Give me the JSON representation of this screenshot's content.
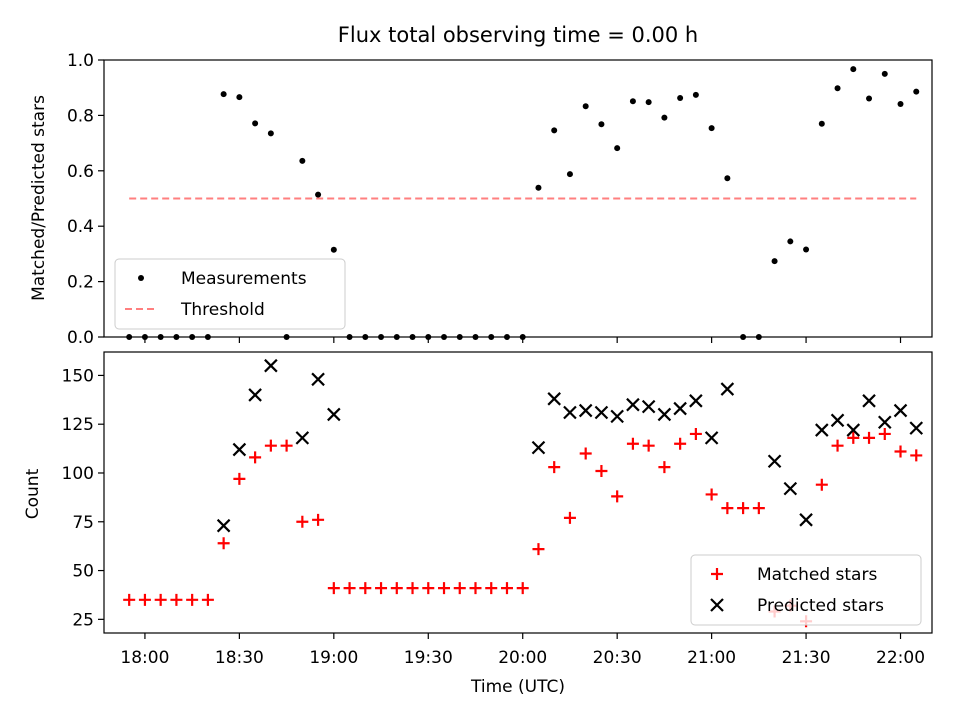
{
  "chart_data": [
    {
      "type": "scatter",
      "title": "Flux total observing time = 0.00 h",
      "ylabel": "Matched/Predicted stars",
      "xlabel": "",
      "xlim": [
        "17:47",
        "22:10"
      ],
      "ylim": [
        0,
        1.0
      ],
      "yticks": [
        "0.0",
        "0.2",
        "0.4",
        "0.6",
        "0.8",
        "1.0"
      ],
      "grid": false,
      "legend_position": "lower-left",
      "series": [
        {
          "name": "Measurements",
          "marker": "dot",
          "color": "#000000",
          "points": [
            [
              "17:55",
              0
            ],
            [
              "18:00",
              0
            ],
            [
              "18:05",
              0
            ],
            [
              "18:10",
              0
            ],
            [
              "18:15",
              0
            ],
            [
              "18:20",
              0
            ],
            [
              "18:25",
              0.877
            ],
            [
              "18:30",
              0.866
            ],
            [
              "18:35",
              0.771
            ],
            [
              "18:40",
              0.735
            ],
            [
              "18:45",
              0
            ],
            [
              "18:50",
              0.636
            ],
            [
              "18:55",
              0.514
            ],
            [
              "19:00",
              0.315
            ],
            [
              "19:05",
              0
            ],
            [
              "19:10",
              0
            ],
            [
              "19:15",
              0
            ],
            [
              "19:20",
              0
            ],
            [
              "19:25",
              0
            ],
            [
              "19:30",
              0
            ],
            [
              "19:35",
              0
            ],
            [
              "19:40",
              0
            ],
            [
              "19:45",
              0
            ],
            [
              "19:50",
              0
            ],
            [
              "19:55",
              0
            ],
            [
              "20:00",
              0
            ],
            [
              "20:05",
              0.539
            ],
            [
              "20:10",
              0.746
            ],
            [
              "20:15",
              0.588
            ],
            [
              "20:20",
              0.833
            ],
            [
              "20:25",
              0.768
            ],
            [
              "20:30",
              0.682
            ],
            [
              "20:35",
              0.851
            ],
            [
              "20:40",
              0.848
            ],
            [
              "20:45",
              0.792
            ],
            [
              "20:50",
              0.863
            ],
            [
              "20:55",
              0.874
            ],
            [
              "21:00",
              0.754
            ],
            [
              "21:05",
              0.573
            ],
            [
              "21:10",
              0
            ],
            [
              "21:15",
              0
            ],
            [
              "21:20",
              0.274
            ],
            [
              "21:25",
              0.345
            ],
            [
              "21:30",
              0.316
            ],
            [
              "21:35",
              0.77
            ],
            [
              "21:40",
              0.898
            ],
            [
              "21:45",
              0.967
            ],
            [
              "21:50",
              0.861
            ],
            [
              "21:55",
              0.95
            ],
            [
              "22:00",
              0.841
            ],
            [
              "22:05",
              0.886
            ]
          ]
        },
        {
          "name": "Threshold",
          "marker": "dashed-line",
          "color": "#ff7f7f",
          "points": [
            [
              "17:55",
              0.5
            ],
            [
              "22:05",
              0.5
            ]
          ]
        }
      ]
    },
    {
      "type": "scatter",
      "title": "",
      "ylabel": "Count",
      "xlabel": "Time (UTC)",
      "xlim": [
        "17:47",
        "22:10"
      ],
      "ylim": [
        18,
        162
      ],
      "yticks": [
        "25",
        "50",
        "75",
        "100",
        "125",
        "150"
      ],
      "xticks": [
        "18:00",
        "18:30",
        "19:00",
        "19:30",
        "20:00",
        "20:30",
        "21:00",
        "21:30",
        "22:00"
      ],
      "grid": false,
      "legend_position": "lower-right",
      "series": [
        {
          "name": "Matched stars",
          "marker": "plus",
          "color": "#ff0000",
          "points": [
            [
              "17:55",
              35
            ],
            [
              "18:00",
              35
            ],
            [
              "18:05",
              35
            ],
            [
              "18:10",
              35
            ],
            [
              "18:15",
              35
            ],
            [
              "18:20",
              35
            ],
            [
              "18:25",
              64
            ],
            [
              "18:30",
              97
            ],
            [
              "18:35",
              108
            ],
            [
              "18:40",
              114
            ],
            [
              "18:45",
              114
            ],
            [
              "18:50",
              75
            ],
            [
              "18:55",
              76
            ],
            [
              "19:00",
              41
            ],
            [
              "19:05",
              41
            ],
            [
              "19:10",
              41
            ],
            [
              "19:15",
              41
            ],
            [
              "19:20",
              41
            ],
            [
              "19:25",
              41
            ],
            [
              "19:30",
              41
            ],
            [
              "19:35",
              41
            ],
            [
              "19:40",
              41
            ],
            [
              "19:45",
              41
            ],
            [
              "19:50",
              41
            ],
            [
              "19:55",
              41
            ],
            [
              "20:00",
              41
            ],
            [
              "20:05",
              61
            ],
            [
              "20:10",
              103
            ],
            [
              "20:15",
              77
            ],
            [
              "20:20",
              110
            ],
            [
              "20:25",
              101
            ],
            [
              "20:30",
              88
            ],
            [
              "20:35",
              115
            ],
            [
              "20:40",
              114
            ],
            [
              "20:45",
              103
            ],
            [
              "20:50",
              115
            ],
            [
              "20:55",
              120
            ],
            [
              "21:00",
              89
            ],
            [
              "21:05",
              82
            ],
            [
              "21:10",
              82
            ],
            [
              "21:15",
              82
            ],
            [
              "21:20",
              29
            ],
            [
              "21:25",
              32
            ],
            [
              "21:30",
              24
            ],
            [
              "21:35",
              94
            ],
            [
              "21:40",
              114
            ],
            [
              "21:45",
              118
            ],
            [
              "21:50",
              118
            ],
            [
              "21:55",
              120
            ],
            [
              "22:00",
              111
            ],
            [
              "22:05",
              109
            ]
          ]
        },
        {
          "name": "Predicted stars",
          "marker": "x",
          "color": "#000000",
          "points": [
            [
              "18:25",
              73
            ],
            [
              "18:30",
              112
            ],
            [
              "18:35",
              140
            ],
            [
              "18:40",
              155
            ],
            [
              "18:50",
              118
            ],
            [
              "18:55",
              148
            ],
            [
              "19:00",
              130
            ],
            [
              "20:05",
              113
            ],
            [
              "20:10",
              138
            ],
            [
              "20:15",
              131
            ],
            [
              "20:20",
              132
            ],
            [
              "20:25",
              131
            ],
            [
              "20:30",
              129
            ],
            [
              "20:35",
              135
            ],
            [
              "20:40",
              134
            ],
            [
              "20:45",
              130
            ],
            [
              "20:50",
              133
            ],
            [
              "20:55",
              137
            ],
            [
              "21:00",
              118
            ],
            [
              "21:05",
              143
            ],
            [
              "21:20",
              106
            ],
            [
              "21:25",
              92
            ],
            [
              "21:30",
              76
            ],
            [
              "21:35",
              122
            ],
            [
              "21:40",
              127
            ],
            [
              "21:45",
              122
            ],
            [
              "21:50",
              137
            ],
            [
              "21:55",
              126
            ],
            [
              "22:00",
              132
            ],
            [
              "22:05",
              123
            ]
          ]
        }
      ]
    }
  ]
}
